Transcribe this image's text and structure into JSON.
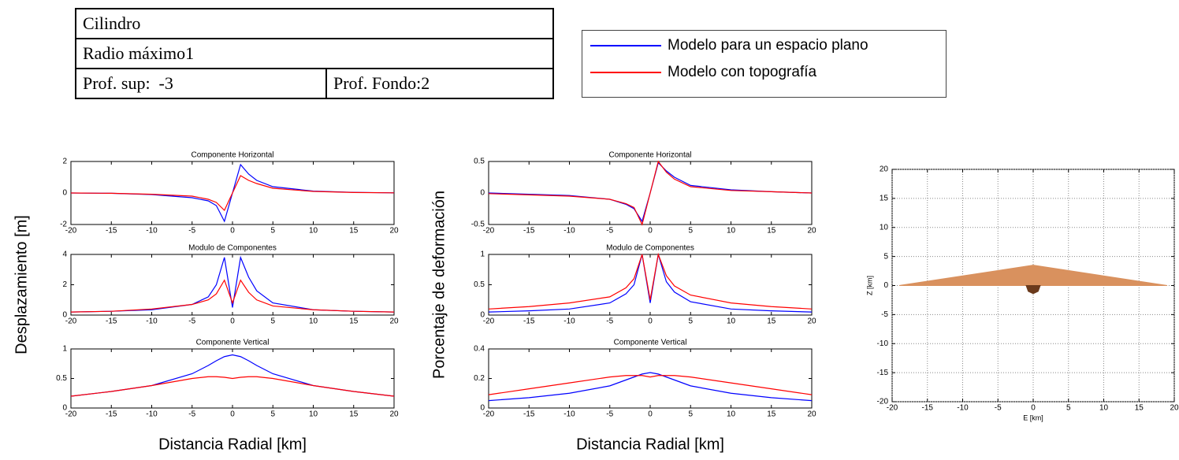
{
  "table": {
    "rows": [
      [
        "Cilindro"
      ],
      [
        "Radio máximo1"
      ],
      [
        "Prof. sup:  -3",
        "Prof. Fondo:2"
      ]
    ]
  },
  "legend": {
    "entries": [
      {
        "name": "Modelo para un espacio plano",
        "color": "#0000ff"
      },
      {
        "name": "Modelo con topografía",
        "color": "#ff0000"
      }
    ]
  },
  "chart_data": [
    {
      "type": "line",
      "title": "Componente Horizontal",
      "ylabel": "Desplazamiento [m]",
      "x": [
        -20,
        -15,
        -10,
        -5,
        -3,
        -2,
        -1,
        0,
        1,
        2,
        3,
        5,
        10,
        15,
        20
      ],
      "series": [
        {
          "color": "#0000ff",
          "values": [
            0,
            -0.02,
            -0.1,
            -0.3,
            -0.5,
            -0.8,
            -1.8,
            0,
            1.8,
            1.2,
            0.8,
            0.4,
            0.12,
            0.04,
            0.01
          ]
        },
        {
          "color": "#ff0000",
          "values": [
            0,
            -0.02,
            -0.08,
            -0.2,
            -0.4,
            -0.6,
            -1.1,
            0,
            1.1,
            0.8,
            0.6,
            0.3,
            0.1,
            0.03,
            0.01
          ]
        }
      ],
      "xlim": [
        -20,
        20
      ],
      "xticks": [
        -20,
        -15,
        -10,
        -5,
        0,
        5,
        10,
        15,
        20
      ],
      "ylim": [
        -2,
        2
      ],
      "yticks": [
        -2,
        0,
        2
      ]
    },
    {
      "type": "line",
      "title": "Modulo de Componentes",
      "x": [
        -20,
        -15,
        -10,
        -5,
        -3,
        -2,
        -1,
        0,
        1,
        2,
        3,
        5,
        10,
        15,
        20
      ],
      "series": [
        {
          "color": "#0000ff",
          "values": [
            0.2,
            0.25,
            0.35,
            0.7,
            1.2,
            2.0,
            3.8,
            0.5,
            3.8,
            2.5,
            1.6,
            0.8,
            0.35,
            0.25,
            0.2
          ]
        },
        {
          "color": "#ff0000",
          "values": [
            0.2,
            0.25,
            0.4,
            0.7,
            1.0,
            1.4,
            2.3,
            0.8,
            2.3,
            1.5,
            1.0,
            0.6,
            0.35,
            0.25,
            0.2
          ]
        }
      ],
      "xlim": [
        -20,
        20
      ],
      "xticks": [
        -20,
        -15,
        -10,
        -5,
        0,
        5,
        10,
        15,
        20
      ],
      "ylim": [
        0,
        4
      ],
      "yticks": [
        0,
        2,
        4
      ]
    },
    {
      "type": "line",
      "title": "Componente Vertical",
      "xlabel": "Distancia Radial [km]",
      "x": [
        -20,
        -15,
        -10,
        -5,
        -3,
        -2,
        -1,
        0,
        1,
        2,
        3,
        5,
        10,
        15,
        20
      ],
      "series": [
        {
          "color": "#0000ff",
          "values": [
            0.2,
            0.28,
            0.38,
            0.58,
            0.72,
            0.8,
            0.87,
            0.9,
            0.87,
            0.8,
            0.72,
            0.58,
            0.38,
            0.28,
            0.2
          ]
        },
        {
          "color": "#ff0000",
          "values": [
            0.2,
            0.28,
            0.38,
            0.5,
            0.53,
            0.53,
            0.52,
            0.5,
            0.52,
            0.53,
            0.53,
            0.5,
            0.38,
            0.28,
            0.2
          ]
        }
      ],
      "xlim": [
        -20,
        20
      ],
      "xticks": [
        -20,
        -15,
        -10,
        -5,
        0,
        5,
        10,
        15,
        20
      ],
      "ylim": [
        0,
        1
      ],
      "yticks": [
        0,
        0.5,
        1
      ]
    },
    {
      "type": "line",
      "title": "Componente Horizontal",
      "ylabel": "Porcentaje de deformación",
      "x": [
        -20,
        -15,
        -10,
        -5,
        -3,
        -2,
        -1,
        0,
        1,
        2,
        3,
        5,
        10,
        15,
        20
      ],
      "series": [
        {
          "color": "#0000ff",
          "values": [
            0,
            -0.02,
            -0.04,
            -0.1,
            -0.18,
            -0.25,
            -0.45,
            0,
            0.48,
            0.35,
            0.25,
            0.12,
            0.05,
            0.02,
            0
          ]
        },
        {
          "color": "#ff0000",
          "values": [
            -0.01,
            -0.03,
            -0.05,
            -0.1,
            -0.17,
            -0.23,
            -0.5,
            0,
            0.5,
            0.33,
            0.22,
            0.1,
            0.04,
            0.02,
            0
          ]
        }
      ],
      "xlim": [
        -20,
        20
      ],
      "xticks": [
        -20,
        -15,
        -10,
        -5,
        0,
        5,
        10,
        15,
        20
      ],
      "ylim": [
        -0.5,
        0.5
      ],
      "yticks": [
        -0.5,
        0,
        0.5
      ]
    },
    {
      "type": "line",
      "title": "Modulo de Componentes",
      "x": [
        -20,
        -15,
        -10,
        -5,
        -3,
        -2,
        -1,
        0,
        1,
        2,
        3,
        5,
        10,
        15,
        20
      ],
      "series": [
        {
          "color": "#0000ff",
          "values": [
            0.05,
            0.07,
            0.1,
            0.2,
            0.35,
            0.5,
            1,
            0.2,
            1,
            0.55,
            0.38,
            0.22,
            0.1,
            0.07,
            0.05
          ]
        },
        {
          "color": "#ff0000",
          "values": [
            0.1,
            0.14,
            0.2,
            0.3,
            0.45,
            0.6,
            1,
            0.25,
            1,
            0.65,
            0.48,
            0.33,
            0.2,
            0.14,
            0.1
          ]
        }
      ],
      "xlim": [
        -20,
        20
      ],
      "xticks": [
        -20,
        -15,
        -10,
        -5,
        0,
        5,
        10,
        15,
        20
      ],
      "ylim": [
        0,
        1
      ],
      "yticks": [
        0,
        0.5,
        1
      ]
    },
    {
      "type": "line",
      "title": "Componente Vertical",
      "xlabel": "Distancia Radial [km]",
      "x": [
        -20,
        -15,
        -10,
        -5,
        -3,
        -2,
        -1,
        0,
        1,
        2,
        3,
        5,
        10,
        15,
        20
      ],
      "series": [
        {
          "color": "#0000ff",
          "values": [
            0.05,
            0.07,
            0.1,
            0.15,
            0.19,
            0.21,
            0.23,
            0.24,
            0.23,
            0.21,
            0.19,
            0.15,
            0.1,
            0.07,
            0.05
          ]
        },
        {
          "color": "#ff0000",
          "values": [
            0.09,
            0.13,
            0.17,
            0.21,
            0.22,
            0.22,
            0.22,
            0.21,
            0.22,
            0.22,
            0.22,
            0.21,
            0.17,
            0.13,
            0.09
          ]
        }
      ],
      "xlim": [
        -20,
        20
      ],
      "xticks": [
        -20,
        -15,
        -10,
        -5,
        0,
        5,
        10,
        15,
        20
      ],
      "ylim": [
        0,
        0.4
      ],
      "yticks": [
        0,
        0.2,
        0.4
      ]
    },
    {
      "type": "area",
      "xlabel": "E [km]",
      "ylabel": "Z [km]",
      "grid": true,
      "series": [
        {
          "color": "#d9915e",
          "x": [
            -19,
            0,
            19
          ],
          "values": [
            0,
            3.5,
            0
          ]
        },
        {
          "color": "#6b3a1c",
          "x": [
            -1,
            -0.7,
            0,
            0.7,
            1
          ],
          "values": [
            0,
            -1,
            -1.4,
            -1,
            0
          ]
        }
      ],
      "xlim": [
        -20,
        20
      ],
      "xticks": [
        -20,
        -15,
        -10,
        -5,
        0,
        5,
        10,
        15,
        20
      ],
      "ylim": [
        -20,
        20
      ],
      "yticks": [
        -20,
        -15,
        -10,
        -5,
        0,
        5,
        10,
        15,
        20
      ]
    }
  ]
}
